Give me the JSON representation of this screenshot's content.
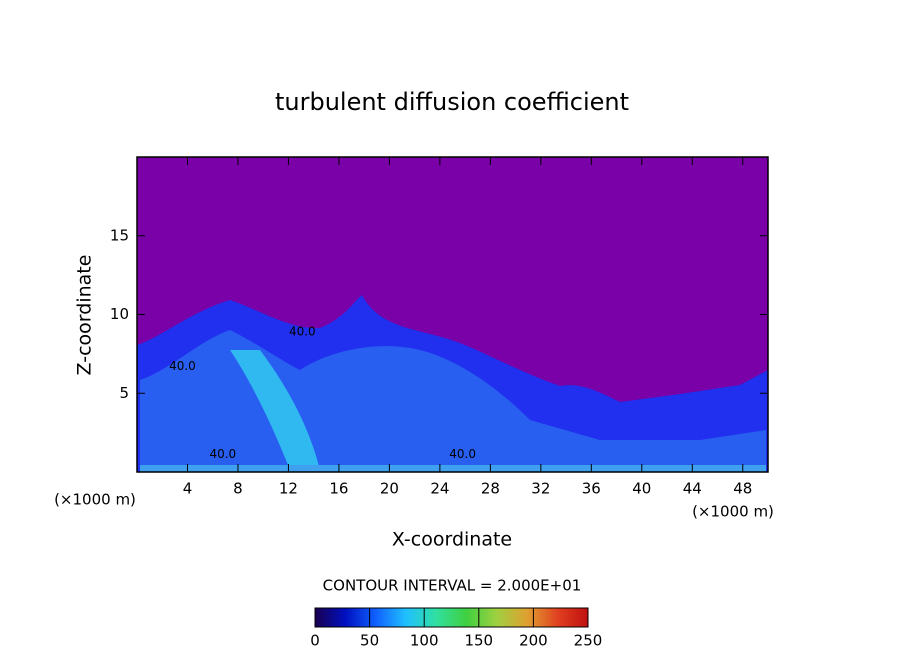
{
  "chart_data": {
    "type": "contour",
    "title": "turbulent diffusion coefficient",
    "x_label": "X-coordinate",
    "y_label": "Z-coordinate",
    "x_unit_left": "(×1000 m)",
    "x_unit_right": "(×1000 m)",
    "xlim": [
      0,
      50
    ],
    "ylim": [
      0,
      20
    ],
    "xticks": [
      4,
      8,
      12,
      16,
      20,
      24,
      28,
      32,
      36,
      40,
      44,
      48
    ],
    "yticks": [
      5,
      10,
      15
    ],
    "background_color": "#7a00a8",
    "contour_labels": [
      {
        "text": "40.0",
        "x": 13.1,
        "y": 8.9
      },
      {
        "text": "40.0",
        "x": 3.6,
        "y": 6.7
      },
      {
        "text": "40.0",
        "x": 6.8,
        "y": 1.1
      },
      {
        "text": "40.0",
        "x": 25.8,
        "y": 1.1
      }
    ],
    "colorbar": {
      "label": "CONTOUR INTERVAL = 2.000E+01",
      "clim": [
        0,
        250
      ],
      "ticks": [
        0,
        50,
        100,
        150,
        200,
        250
      ],
      "colormap": [
        "#1a0050",
        "#0010c0",
        "#1060ff",
        "#20c0ff",
        "#30e0a0",
        "#40d040",
        "#a0d040",
        "#e0a030",
        "#e04020",
        "#c01010"
      ]
    }
  }
}
